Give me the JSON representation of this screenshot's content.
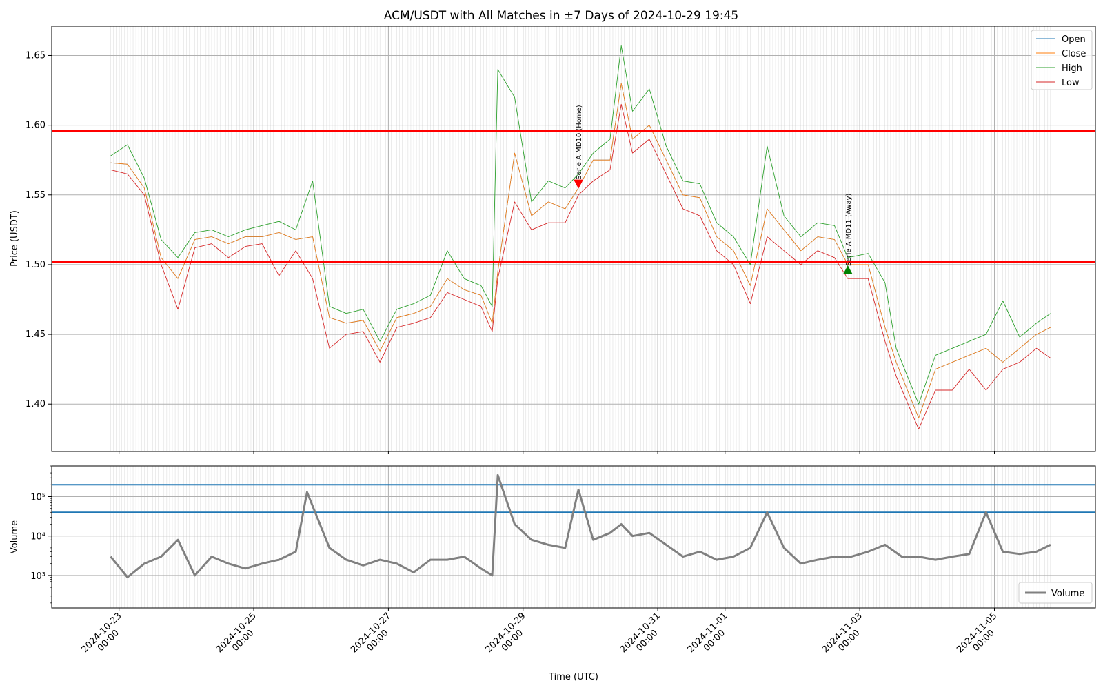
{
  "colors": {
    "open": "#1f77b4",
    "close": "#ff7f0e",
    "high": "#2ca02c",
    "low": "#d62728",
    "volume": "#808080",
    "support_resistance": "#ff0000",
    "volume_threshold": "#1f77b4",
    "home_marker": "#ff0000",
    "away_marker": "#008000"
  },
  "chart_data": [
    {
      "type": "line",
      "title": "ACM/USDT with All Matches in ±7 Days of 2024-10-29 19:45",
      "xlabel": "",
      "ylabel": "Price (USDT)",
      "ylim": [
        1.366,
        1.671
      ],
      "yticks": [
        1.4,
        1.45,
        1.5,
        1.55,
        1.6,
        1.65
      ],
      "ytick_labels": [
        "1.40",
        "1.45",
        "1.50",
        "1.55",
        "1.60",
        "1.65"
      ],
      "grid": true,
      "legend_position": "top-right",
      "series": [
        {
          "name": "Open",
          "key": "open"
        },
        {
          "name": "Close",
          "key": "close"
        },
        {
          "name": "High",
          "key": "high"
        },
        {
          "name": "Low",
          "key": "low"
        }
      ],
      "x": [
        "2024-10-22 21:00",
        "2024-10-23 03:00",
        "2024-10-23 09:00",
        "2024-10-23 15:00",
        "2024-10-23 21:00",
        "2024-10-24 03:00",
        "2024-10-24 09:00",
        "2024-10-24 15:00",
        "2024-10-24 21:00",
        "2024-10-25 03:00",
        "2024-10-25 09:00",
        "2024-10-25 15:00",
        "2024-10-25 21:00",
        "2024-10-26 03:00",
        "2024-10-26 09:00",
        "2024-10-26 15:00",
        "2024-10-26 21:00",
        "2024-10-27 03:00",
        "2024-10-27 09:00",
        "2024-10-27 15:00",
        "2024-10-27 21:00",
        "2024-10-28 03:00",
        "2024-10-28 09:00",
        "2024-10-28 13:00",
        "2024-10-28 15:00",
        "2024-10-28 21:00",
        "2024-10-29 03:00",
        "2024-10-29 09:00",
        "2024-10-29 15:00",
        "2024-10-29 19:45",
        "2024-10-30 01:00",
        "2024-10-30 07:00",
        "2024-10-30 11:00",
        "2024-10-30 15:00",
        "2024-10-30 21:00",
        "2024-10-31 03:00",
        "2024-10-31 09:00",
        "2024-10-31 15:00",
        "2024-10-31 21:00",
        "2024-11-01 03:00",
        "2024-11-01 09:00",
        "2024-11-01 15:00",
        "2024-11-01 21:00",
        "2024-11-02 03:00",
        "2024-11-02 09:00",
        "2024-11-02 15:00",
        "2024-11-02 19:45",
        "2024-11-03 03:00",
        "2024-11-03 09:00",
        "2024-11-03 13:00",
        "2024-11-03 21:00",
        "2024-11-04 03:00",
        "2024-11-04 09:00",
        "2024-11-04 15:00",
        "2024-11-04 21:00",
        "2024-11-05 03:00",
        "2024-11-05 09:00",
        "2024-11-05 15:00",
        "2024-11-05 20:00"
      ],
      "close": [
        1.573,
        1.572,
        1.555,
        1.505,
        1.49,
        1.518,
        1.52,
        1.515,
        1.52,
        1.52,
        1.523,
        1.518,
        1.52,
        1.462,
        1.458,
        1.46,
        1.438,
        1.462,
        1.465,
        1.47,
        1.49,
        1.482,
        1.478,
        1.458,
        1.495,
        1.58,
        1.535,
        1.545,
        1.54,
        1.555,
        1.575,
        1.575,
        1.63,
        1.59,
        1.6,
        1.575,
        1.55,
        1.548,
        1.52,
        1.51,
        1.485,
        1.54,
        1.525,
        1.51,
        1.52,
        1.518,
        1.5,
        1.5,
        1.455,
        1.43,
        1.39,
        1.425,
        1.43,
        1.435,
        1.44,
        1.43,
        1.44,
        1.45,
        1.455
      ],
      "high": [
        1.578,
        1.586,
        1.562,
        1.518,
        1.505,
        1.523,
        1.525,
        1.52,
        1.525,
        1.528,
        1.531,
        1.525,
        1.56,
        1.47,
        1.465,
        1.468,
        1.445,
        1.468,
        1.472,
        1.478,
        1.51,
        1.49,
        1.485,
        1.47,
        1.64,
        1.62,
        1.545,
        1.56,
        1.555,
        1.565,
        1.58,
        1.59,
        1.657,
        1.61,
        1.626,
        1.585,
        1.56,
        1.558,
        1.53,
        1.52,
        1.5,
        1.585,
        1.535,
        1.52,
        1.53,
        1.528,
        1.505,
        1.508,
        1.487,
        1.44,
        1.4,
        1.435,
        1.44,
        1.445,
        1.45,
        1.474,
        1.448,
        1.458,
        1.465
      ],
      "low": [
        1.568,
        1.565,
        1.55,
        1.5,
        1.468,
        1.512,
        1.515,
        1.505,
        1.513,
        1.515,
        1.492,
        1.51,
        1.49,
        1.44,
        1.45,
        1.452,
        1.43,
        1.455,
        1.458,
        1.462,
        1.48,
        1.475,
        1.47,
        1.452,
        1.49,
        1.545,
        1.525,
        1.53,
        1.53,
        1.55,
        1.56,
        1.568,
        1.615,
        1.58,
        1.59,
        1.565,
        1.54,
        1.535,
        1.51,
        1.5,
        1.472,
        1.52,
        1.51,
        1.5,
        1.51,
        1.505,
        1.49,
        1.49,
        1.445,
        1.42,
        1.382,
        1.41,
        1.41,
        1.425,
        1.41,
        1.425,
        1.43,
        1.44,
        1.433
      ],
      "horizontal_lines": [
        1.596,
        1.502
      ],
      "annotations": [
        {
          "label": "Serie A MD10 (Home)",
          "x": "2024-10-29 19:45",
          "y": 1.558,
          "marker": "triangle-down"
        },
        {
          "label": "Serie A MD11 (Away)",
          "x": "2024-11-02 19:45",
          "y": 1.496,
          "marker": "triangle-up"
        }
      ]
    },
    {
      "type": "line",
      "xlabel": "Time (UTC)",
      "ylabel": "Volume",
      "yscale": "log",
      "ylim": [
        150,
        600000
      ],
      "yticks": [
        1000,
        10000,
        100000
      ],
      "ytick_labels": [
        "10³",
        "10⁴",
        "10⁵"
      ],
      "grid": true,
      "legend_position": "bottom-right",
      "xlim": [
        "2024-10-22 00:00",
        "2024-11-06 12:00"
      ],
      "xticks": [
        "2024-10-23 00:00",
        "2024-10-25 00:00",
        "2024-10-27 00:00",
        "2024-10-29 00:00",
        "2024-10-31 00:00",
        "2024-11-01 00:00",
        "2024-11-03 00:00",
        "2024-11-05 00:00"
      ],
      "xtick_labels": [
        [
          "2024-10-23",
          "00:00"
        ],
        [
          "2024-10-25",
          "00:00"
        ],
        [
          "2024-10-27",
          "00:00"
        ],
        [
          "2024-10-29",
          "00:00"
        ],
        [
          "2024-10-31",
          "00:00"
        ],
        [
          "2024-11-01",
          "00:00"
        ],
        [
          "2024-11-03",
          "00:00"
        ],
        [
          "2024-11-05",
          "00:00"
        ]
      ],
      "horizontal_lines": [
        200000,
        40000
      ],
      "series": [
        {
          "name": "Volume",
          "x": [
            "2024-10-22 21:00",
            "2024-10-23 03:00",
            "2024-10-23 09:00",
            "2024-10-23 15:00",
            "2024-10-23 21:00",
            "2024-10-24 03:00",
            "2024-10-24 09:00",
            "2024-10-24 15:00",
            "2024-10-24 21:00",
            "2024-10-25 03:00",
            "2024-10-25 09:00",
            "2024-10-25 15:00",
            "2024-10-25 19:00",
            "2024-10-26 03:00",
            "2024-10-26 09:00",
            "2024-10-26 15:00",
            "2024-10-26 21:00",
            "2024-10-27 03:00",
            "2024-10-27 09:00",
            "2024-10-27 15:00",
            "2024-10-27 21:00",
            "2024-10-28 03:00",
            "2024-10-28 09:00",
            "2024-10-28 13:00",
            "2024-10-28 15:00",
            "2024-10-28 21:00",
            "2024-10-29 03:00",
            "2024-10-29 09:00",
            "2024-10-29 15:00",
            "2024-10-29 19:45",
            "2024-10-30 01:00",
            "2024-10-30 07:00",
            "2024-10-30 11:00",
            "2024-10-30 15:00",
            "2024-10-30 21:00",
            "2024-10-31 03:00",
            "2024-10-31 09:00",
            "2024-10-31 15:00",
            "2024-10-31 21:00",
            "2024-11-01 03:00",
            "2024-11-01 09:00",
            "2024-11-01 15:00",
            "2024-11-01 21:00",
            "2024-11-02 03:00",
            "2024-11-02 09:00",
            "2024-11-02 15:00",
            "2024-11-02 21:00",
            "2024-11-03 03:00",
            "2024-11-03 09:00",
            "2024-11-03 15:00",
            "2024-11-03 21:00",
            "2024-11-04 03:00",
            "2024-11-04 09:00",
            "2024-11-04 15:00",
            "2024-11-04 21:00",
            "2024-11-05 03:00",
            "2024-11-05 09:00",
            "2024-11-05 15:00",
            "2024-11-05 20:00"
          ],
          "values": [
            3000,
            900,
            2000,
            3000,
            8000,
            1000,
            3000,
            2000,
            1500,
            2000,
            2500,
            4000,
            130000,
            5000,
            2500,
            1800,
            2500,
            2000,
            1200,
            2500,
            2500,
            3000,
            1500,
            1000,
            350000,
            20000,
            8000,
            6000,
            5000,
            150000,
            8000,
            12000,
            20000,
            10000,
            12000,
            6000,
            3000,
            4000,
            2500,
            3000,
            5000,
            40000,
            5000,
            2000,
            2500,
            3000,
            3000,
            4000,
            6000,
            3000,
            3000,
            2500,
            3000,
            3500,
            40000,
            4000,
            3500,
            4000,
            6000
          ]
        }
      ]
    }
  ]
}
